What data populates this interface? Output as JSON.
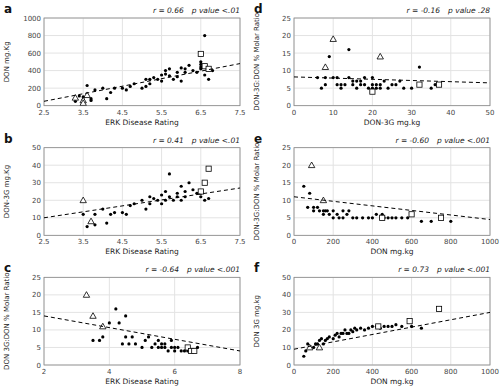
{
  "chart_data": [
    {
      "type": "scatter",
      "title": "a",
      "xlabel": "ERK Disease Rating",
      "ylabel": "DON mg.Kg",
      "xlim": [
        2.5,
        7.5
      ],
      "ylim": [
        0,
        1000
      ],
      "xticks": [
        2.5,
        3.5,
        4.5,
        5.5,
        6.5,
        7.5
      ],
      "yticks": [
        0,
        200,
        400,
        600,
        800,
        1000
      ],
      "grid": true,
      "annotations": [
        "r = 0.66",
        "p value <.01"
      ],
      "series": [
        {
          "marker": "circle",
          "color": "black",
          "x": [
            3.3,
            3.4,
            3.5,
            3.5,
            3.6,
            3.7,
            3.7,
            3.8,
            4.0,
            4.1,
            4.2,
            4.3,
            4.5,
            4.6,
            4.7,
            4.8,
            5.0,
            5.1,
            5.1,
            5.2,
            5.2,
            5.3,
            5.4,
            5.5,
            5.5,
            5.6,
            5.6,
            5.7,
            5.7,
            5.8,
            5.9,
            5.9,
            6.0,
            6.0,
            6.1,
            6.1,
            6.2,
            6.3,
            6.4,
            6.5,
            6.5,
            6.5,
            6.5,
            6.6,
            6.6,
            6.7,
            6.8
          ],
          "values": [
            50,
            110,
            100,
            70,
            230,
            80,
            60,
            180,
            200,
            80,
            150,
            200,
            200,
            180,
            220,
            250,
            200,
            220,
            300,
            250,
            300,
            320,
            300,
            350,
            280,
            400,
            360,
            340,
            420,
            300,
            330,
            380,
            430,
            280,
            380,
            420,
            460,
            400,
            380,
            420,
            440,
            470,
            500,
            800,
            350,
            300,
            400
          ]
        },
        {
          "marker": "open-triangle",
          "color": "black",
          "x": [
            3.3,
            3.5,
            3.5,
            3.6
          ],
          "values": [
            90,
            60,
            30,
            120
          ]
        },
        {
          "marker": "open-square",
          "color": "black",
          "x": [
            6.5,
            6.6,
            6.7
          ],
          "values": [
            590,
            450,
            420
          ]
        },
        {
          "type": "line",
          "line_style": "dashed",
          "color": "black",
          "x": [
            2.5,
            7.5
          ],
          "values": [
            50,
            480
          ]
        }
      ]
    },
    {
      "type": "scatter",
      "title": "b",
      "xlabel": "ERK Disease Rating",
      "ylabel": "DON-3G mg.Kg",
      "xlim": [
        2.5,
        7.5
      ],
      "ylim": [
        0,
        50
      ],
      "xticks": [
        2.5,
        3.5,
        4.5,
        5.5,
        6.5,
        7.5
      ],
      "yticks": [
        0,
        10,
        20,
        30,
        40,
        50
      ],
      "grid": true,
      "annotations": [
        "r = 0.41",
        "p value <.01"
      ],
      "series": [
        {
          "marker": "circle",
          "color": "black",
          "x": [
            3.5,
            3.6,
            3.7,
            3.8,
            3.8,
            4.0,
            4.1,
            4.2,
            4.3,
            4.5,
            4.6,
            4.7,
            4.8,
            5.0,
            5.1,
            5.2,
            5.2,
            5.3,
            5.4,
            5.5,
            5.5,
            5.6,
            5.6,
            5.7,
            5.7,
            5.8,
            5.9,
            5.9,
            6.0,
            6.0,
            6.1,
            6.1,
            6.2,
            6.3,
            6.4,
            6.5,
            6.5,
            6.6,
            6.7
          ],
          "values": [
            12,
            5,
            8,
            12,
            6,
            15,
            7,
            12,
            13,
            13,
            12,
            17,
            18,
            20,
            15,
            18,
            22,
            21,
            20,
            23,
            18,
            25,
            20,
            22,
            35,
            20,
            22,
            24,
            28,
            20,
            25,
            22,
            30,
            26,
            24,
            22,
            24,
            20,
            21
          ]
        },
        {
          "marker": "open-triangle",
          "color": "black",
          "x": [
            3.5,
            3.7
          ],
          "values": [
            20,
            8
          ]
        },
        {
          "marker": "open-square",
          "color": "black",
          "x": [
            6.5,
            6.6,
            6.7
          ],
          "values": [
            25,
            30,
            38
          ]
        },
        {
          "type": "line",
          "line_style": "dashed",
          "color": "black",
          "x": [
            2.5,
            7.5
          ],
          "values": [
            10,
            27
          ]
        }
      ]
    },
    {
      "type": "scatter",
      "title": "c",
      "xlabel": "ERK Disease Rating",
      "ylabel": "DON 3G:DON % Molar Ratio",
      "xlim": [
        2.0,
        8.0
      ],
      "ylim": [
        0,
        25
      ],
      "xticks": [
        2,
        4,
        6,
        8
      ],
      "yticks": [
        0,
        5,
        10,
        15,
        20,
        25
      ],
      "grid": true,
      "annotations": [
        "r = -0.64",
        "p value <.001"
      ],
      "series": [
        {
          "marker": "circle",
          "color": "black",
          "x": [
            3.5,
            3.7,
            3.8,
            4.0,
            4.2,
            4.3,
            4.4,
            4.5,
            4.5,
            4.6,
            4.7,
            4.8,
            5.0,
            5.1,
            5.2,
            5.3,
            5.4,
            5.5,
            5.5,
            5.6,
            5.6,
            5.7,
            5.7,
            5.8,
            5.9,
            5.9,
            6.0,
            6.0,
            6.1,
            6.2,
            6.3,
            6.4,
            6.5,
            6.6,
            6.7
          ],
          "values": [
            7,
            7,
            8,
            12,
            16,
            12,
            6,
            8,
            14,
            6,
            8,
            6,
            5,
            7,
            8,
            5,
            6,
            5,
            7,
            5,
            6,
            5,
            6,
            4,
            5,
            7,
            5,
            4,
            5,
            4,
            4,
            4,
            4,
            4,
            5
          ]
        },
        {
          "marker": "open-triangle",
          "color": "black",
          "x": [
            3.3,
            3.5,
            3.8
          ],
          "values": [
            20,
            14,
            11
          ]
        },
        {
          "marker": "open-square",
          "color": "black",
          "x": [
            6.4,
            6.5,
            6.6
          ],
          "values": [
            5,
            4,
            4
          ]
        },
        {
          "type": "line",
          "line_style": "dashed",
          "color": "black",
          "x": [
            2.0,
            8.0
          ],
          "values": [
            14,
            4
          ]
        }
      ]
    },
    {
      "type": "scatter",
      "title": "d",
      "xlabel": "DON-3G mg.kg",
      "ylabel": "DON-3G:DON % Molar Ratio",
      "xlim": [
        0,
        50
      ],
      "ylim": [
        0,
        25
      ],
      "xticks": [
        0,
        10,
        20,
        30,
        40,
        50
      ],
      "yticks": [
        0,
        5,
        10,
        15,
        20,
        25
      ],
      "grid": true,
      "annotations": [
        "r = -0.16",
        "p value .28"
      ],
      "series": [
        {
          "marker": "circle",
          "color": "black",
          "x": [
            6,
            7,
            8,
            8,
            9,
            10,
            11,
            11,
            12,
            12,
            13,
            14,
            14,
            15,
            15,
            16,
            16,
            17,
            17,
            18,
            18,
            19,
            20,
            20,
            20,
            21,
            21,
            22,
            22,
            23,
            24,
            25,
            26,
            27,
            28,
            30,
            32,
            35,
            36
          ],
          "values": [
            8,
            5,
            8,
            6,
            14,
            8,
            6,
            8,
            6,
            5,
            6,
            16,
            8,
            6,
            7,
            7,
            5,
            7,
            6,
            8,
            6,
            5,
            8,
            6,
            5,
            5,
            6,
            5,
            6,
            7,
            5,
            6,
            6,
            7,
            5,
            5,
            11,
            5,
            6
          ]
        },
        {
          "marker": "open-triangle",
          "color": "black",
          "x": [
            8,
            10,
            22
          ],
          "values": [
            11,
            19,
            14
          ]
        },
        {
          "marker": "open-square",
          "color": "black",
          "x": [
            20,
            32,
            37
          ],
          "values": [
            4,
            6,
            6
          ]
        },
        {
          "type": "line",
          "line_style": "dashed",
          "color": "black",
          "x": [
            0,
            50
          ],
          "values": [
            8.2,
            6.5
          ]
        }
      ]
    },
    {
      "type": "scatter",
      "title": "e",
      "xlabel": "DON mg.kg",
      "ylabel": "DON-3G:DON % Molar Ratio",
      "xlim": [
        0,
        1000
      ],
      "ylim": [
        0,
        25
      ],
      "xticks": [
        0,
        200,
        400,
        600,
        800,
        1000
      ],
      "yticks": [
        0,
        5,
        10,
        15,
        20,
        25
      ],
      "grid": true,
      "annotations": [
        "r = -0.60",
        "p value <.001"
      ],
      "series": [
        {
          "marker": "circle",
          "color": "black",
          "x": [
            50,
            70,
            80,
            100,
            100,
            120,
            130,
            150,
            150,
            160,
            170,
            180,
            200,
            200,
            220,
            230,
            250,
            250,
            270,
            280,
            300,
            320,
            350,
            380,
            400,
            420,
            450,
            460,
            480,
            500,
            520,
            550,
            580,
            600,
            650,
            700,
            750,
            800
          ],
          "values": [
            14,
            8,
            12,
            8,
            7,
            8,
            7,
            7,
            6,
            7,
            7,
            6,
            5,
            7,
            6,
            5,
            5,
            7,
            6,
            7,
            5,
            5,
            5,
            5,
            5,
            6,
            6,
            5,
            5,
            5,
            5,
            5,
            5,
            6,
            4,
            4,
            5,
            4
          ]
        },
        {
          "marker": "open-triangle",
          "color": "black",
          "x": [
            90,
            150
          ],
          "values": [
            20,
            10
          ]
        },
        {
          "marker": "open-square",
          "color": "black",
          "x": [
            450,
            600,
            750
          ],
          "values": [
            5,
            6,
            5
          ]
        },
        {
          "type": "line",
          "line_style": "dashed",
          "color": "black",
          "x": [
            0,
            1000
          ],
          "values": [
            11,
            4.5
          ]
        }
      ]
    },
    {
      "type": "scatter",
      "title": "f",
      "xlabel": "DON mg.kg",
      "ylabel": "DON 3G mg.kg",
      "xlim": [
        0,
        1000
      ],
      "ylim": [
        0,
        50
      ],
      "xticks": [
        0,
        200,
        400,
        600,
        800,
        1000
      ],
      "yticks": [
        0,
        10,
        20,
        30,
        40,
        50
      ],
      "grid": true,
      "annotations": [
        "r = 0.73",
        "p value <.001"
      ],
      "series": [
        {
          "marker": "circle",
          "color": "black",
          "x": [
            50,
            60,
            70,
            100,
            110,
            120,
            130,
            140,
            150,
            160,
            170,
            180,
            200,
            210,
            220,
            230,
            240,
            250,
            260,
            270,
            280,
            290,
            300,
            310,
            320,
            340,
            360,
            380,
            400,
            420,
            440,
            460,
            480,
            500,
            520,
            550,
            600,
            650
          ],
          "values": [
            5,
            8,
            12,
            10,
            12,
            12,
            14,
            15,
            12,
            14,
            15,
            16,
            15,
            17,
            18,
            16,
            18,
            18,
            20,
            18,
            18,
            20,
            19,
            21,
            20,
            21,
            20,
            21,
            22,
            22,
            21,
            22,
            22,
            22,
            23,
            22,
            22,
            21
          ]
        },
        {
          "marker": "open-triangle",
          "color": "black",
          "x": [
            80,
            130
          ],
          "values": [
            10,
            10
          ]
        },
        {
          "marker": "open-square",
          "color": "black",
          "x": [
            430,
            590,
            740
          ],
          "values": [
            22,
            25,
            32
          ]
        },
        {
          "type": "line",
          "line_style": "dashed",
          "color": "black",
          "x": [
            0,
            1000
          ],
          "values": [
            9,
            30
          ]
        }
      ]
    }
  ]
}
